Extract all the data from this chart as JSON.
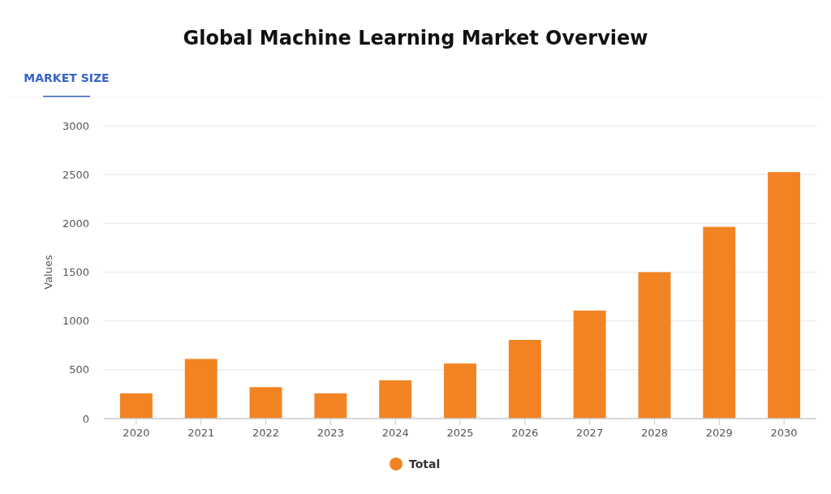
{
  "chart_data": {
    "type": "bar",
    "title": "Global Machine Learning Market Overview",
    "subtitle": "MARKET SIZE",
    "ylabel": "Values",
    "categories": [
      "2020",
      "2021",
      "2022",
      "2023",
      "2024",
      "2025",
      "2026",
      "2027",
      "2028",
      "2029",
      "2030"
    ],
    "series": [
      {
        "name": "Total",
        "color": "#f28322",
        "values": [
          258,
          611,
          322,
          258,
          392,
          564,
          806,
          1106,
          1500,
          1964,
          2525
        ]
      }
    ],
    "ylim": [
      0,
      3000
    ],
    "yticks": [
      0,
      500,
      1000,
      1500,
      2000,
      2500,
      3000
    ],
    "grid": "y",
    "legend": "bottom"
  }
}
